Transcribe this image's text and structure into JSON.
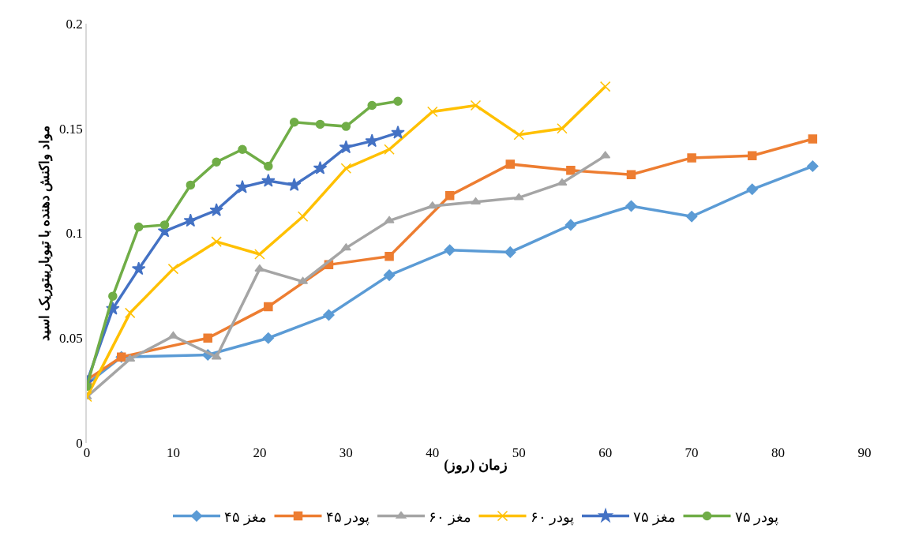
{
  "chart_data": {
    "type": "line",
    "xlabel": "زمان (روز)",
    "ylabel": "مواد واکنش دهنده با تیوباربیتوریک اسید",
    "xlim": [
      0,
      90
    ],
    "xticks": [
      0,
      10,
      20,
      30,
      40,
      50,
      60,
      70,
      80,
      90
    ],
    "ylim": [
      0,
      0.2
    ],
    "yticks": [
      0,
      0.05,
      0.1,
      0.15,
      0.2
    ],
    "legend": "bottom",
    "series": [
      {
        "name": "مغز ۴۵",
        "color": "#5b9bd5",
        "marker": "diamond",
        "x": [
          0,
          4,
          14,
          21,
          28,
          35,
          42,
          49,
          56,
          63,
          70,
          77,
          84
        ],
        "values": [
          0.028,
          0.041,
          0.042,
          0.05,
          0.061,
          0.08,
          0.092,
          0.091,
          0.104,
          0.113,
          0.108,
          0.121,
          0.132
        ]
      },
      {
        "name": "پودر ۴۵",
        "color": "#ed7d31",
        "marker": "square",
        "x": [
          0,
          4,
          14,
          21,
          28,
          35,
          42,
          49,
          56,
          63,
          70,
          77,
          84
        ],
        "values": [
          0.03,
          0.041,
          0.05,
          0.065,
          0.085,
          0.089,
          0.118,
          0.133,
          0.13,
          0.128,
          0.136,
          0.137,
          0.145
        ]
      },
      {
        "name": "مغز ۶۰",
        "color": "#a5a5a5",
        "marker": "triangle",
        "x": [
          0,
          5,
          10,
          15,
          20,
          25,
          30,
          35,
          40,
          45,
          50,
          55,
          60
        ],
        "values": [
          0.022,
          0.04,
          0.051,
          0.041,
          0.083,
          0.077,
          0.093,
          0.106,
          0.113,
          0.115,
          0.117,
          0.124,
          0.137
        ]
      },
      {
        "name": "پودر ۶۰",
        "color": "#ffc000",
        "marker": "cross",
        "x": [
          0,
          5,
          10,
          15,
          20,
          25,
          30,
          35,
          40,
          45,
          50,
          55,
          60
        ],
        "values": [
          0.022,
          0.062,
          0.083,
          0.096,
          0.09,
          0.108,
          0.131,
          0.14,
          0.158,
          0.161,
          0.147,
          0.15,
          0.17
        ]
      },
      {
        "name": "مغز ۷۵",
        "color": "#4472c4",
        "marker": "star",
        "x": [
          0,
          3,
          6,
          9,
          12,
          15,
          18,
          21,
          24,
          27,
          30,
          33,
          36
        ],
        "values": [
          0.029,
          0.064,
          0.083,
          0.101,
          0.106,
          0.111,
          0.122,
          0.125,
          0.123,
          0.131,
          0.141,
          0.144,
          0.148
        ]
      },
      {
        "name": "پودر ۷۵",
        "color": "#70ad47",
        "marker": "circle",
        "x": [
          0,
          3,
          6,
          9,
          12,
          15,
          18,
          21,
          24,
          27,
          30,
          33,
          36
        ],
        "values": [
          0.027,
          0.07,
          0.103,
          0.104,
          0.123,
          0.134,
          0.14,
          0.132,
          0.153,
          0.152,
          0.151,
          0.161,
          0.163
        ]
      }
    ]
  }
}
